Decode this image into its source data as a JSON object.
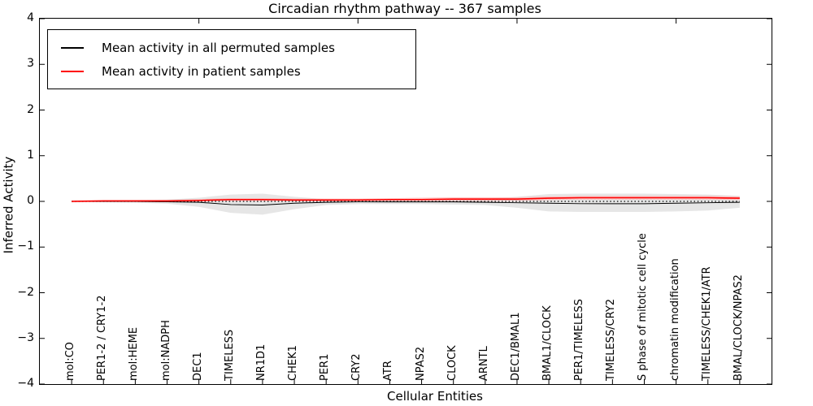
{
  "title": "Circadian rhythm pathway -- 367 samples",
  "axes": {
    "ylabel": "Inferred Activity",
    "xlabel": "Cellular Entities",
    "yticks": [
      "4",
      "3",
      "2",
      "1",
      "0",
      "−1",
      "−2",
      "−3",
      "−4"
    ]
  },
  "legend": {
    "items": [
      {
        "label": "Mean activity in all permuted samples",
        "color": "#000000"
      },
      {
        "label": "Mean activity in patient samples",
        "color": "#ff0000"
      }
    ]
  },
  "chart_data": {
    "type": "line",
    "title": "Circadian rhythm pathway -- 367 samples",
    "xlabel": "Cellular Entities",
    "ylabel": "Inferred Activity",
    "ylim": [
      -4,
      4
    ],
    "xlim": [
      0,
      23
    ],
    "grid": false,
    "legend_position": "upper left",
    "categories": [
      "mol:CO",
      "PER1-2 / CRY1-2",
      "mol:HEME",
      "mol:NADPH",
      "DEC1",
      "TIMELESS",
      "NR1D1",
      "CHEK1",
      "PER1",
      "CRY2",
      "ATR",
      "NPAS2",
      "CLOCK",
      "ARNTL",
      "DEC1/BMAL1",
      "BMAL1/CLOCK",
      "PER1/TIMELESS",
      "TIMELESS/CRY2",
      "S phase of mitotic cell cycle",
      "chromatin modification",
      "TIMELESS/CHEK1/ATR",
      "BMAL/CLOCK/NPAS2"
    ],
    "series": [
      {
        "name": "Mean activity in all permuted samples",
        "color": "#000000",
        "width": 1,
        "values": [
          0.0,
          0.0,
          0.0,
          -0.01,
          -0.02,
          -0.07,
          -0.08,
          -0.04,
          -0.02,
          -0.01,
          -0.01,
          -0.01,
          -0.01,
          -0.02,
          -0.03,
          -0.04,
          -0.05,
          -0.05,
          -0.05,
          -0.04,
          -0.03,
          -0.02
        ]
      },
      {
        "name": "Mean activity in patient samples",
        "color": "#ff0000",
        "width": 1.6,
        "values": [
          0.0,
          0.01,
          0.01,
          0.01,
          0.02,
          0.04,
          0.04,
          0.03,
          0.03,
          0.03,
          0.04,
          0.04,
          0.05,
          0.05,
          0.05,
          0.07,
          0.08,
          0.08,
          0.08,
          0.08,
          0.08,
          0.07
        ]
      }
    ],
    "bands": [
      {
        "name": "permuted-samples-range",
        "color": "#e3e3e3",
        "opacity": 0.9,
        "upper": [
          0.02,
          0.02,
          0.03,
          0.04,
          0.08,
          0.15,
          0.17,
          0.1,
          0.05,
          0.04,
          0.04,
          0.05,
          0.05,
          0.06,
          0.1,
          0.16,
          0.17,
          0.17,
          0.17,
          0.16,
          0.15,
          0.12
        ],
        "lower": [
          -0.02,
          -0.02,
          -0.03,
          -0.05,
          -0.12,
          -0.25,
          -0.29,
          -0.17,
          -0.08,
          -0.06,
          -0.06,
          -0.06,
          -0.07,
          -0.08,
          -0.14,
          -0.22,
          -0.23,
          -0.23,
          -0.23,
          -0.22,
          -0.2,
          -0.14
        ]
      },
      {
        "name": "patient-samples-range",
        "color": "#ffb5b5",
        "opacity": 0.75,
        "upper": [
          0.02,
          0.03,
          0.03,
          0.03,
          0.05,
          0.07,
          0.07,
          0.06,
          0.06,
          0.06,
          0.07,
          0.08,
          0.09,
          0.09,
          0.09,
          0.11,
          0.12,
          0.12,
          0.12,
          0.12,
          0.12,
          0.11
        ],
        "lower": [
          -0.02,
          -0.01,
          -0.01,
          -0.01,
          0.0,
          0.01,
          0.01,
          0.0,
          0.0,
          0.0,
          0.01,
          0.01,
          0.01,
          0.01,
          0.01,
          0.03,
          0.04,
          0.04,
          0.04,
          0.04,
          0.04,
          0.03
        ]
      }
    ],
    "zero_line": {
      "y": 0,
      "style": "dotted",
      "color": "#000000"
    },
    "top_ticks_x": [
      5,
      10,
      15,
      20
    ],
    "tick_color": "#000000"
  }
}
